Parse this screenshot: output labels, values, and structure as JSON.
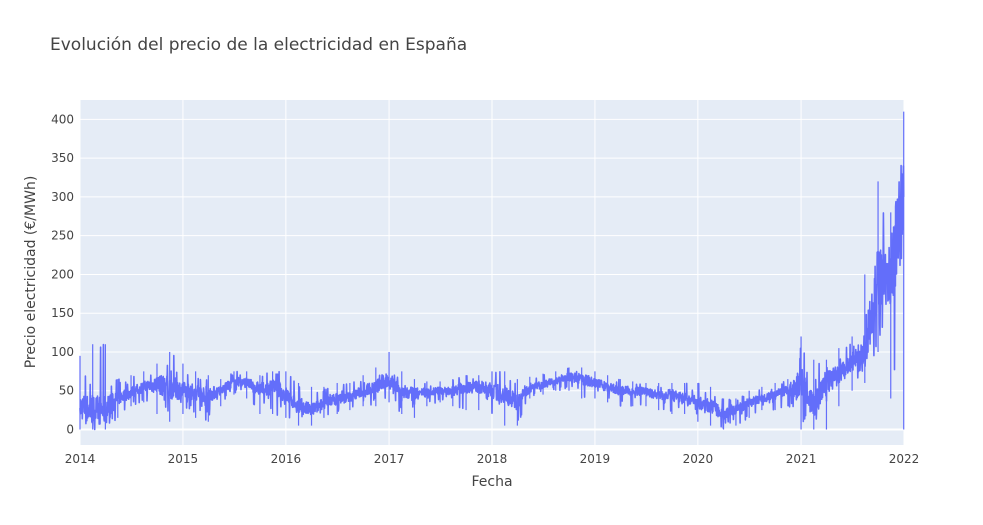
{
  "chart_data": {
    "type": "line",
    "title": "Evolución del precio de la electricidad en España",
    "xlabel": "Fecha",
    "ylabel": "Precio electricidad (€/MWh)",
    "xlim": [
      "2014-01-01",
      "2022-01-01"
    ],
    "ylim": [
      -20,
      425
    ],
    "x_ticks": [
      "2014",
      "2015",
      "2016",
      "2017",
      "2018",
      "2019",
      "2020",
      "2021",
      "2022"
    ],
    "y_ticks": [
      "0",
      "50",
      "100",
      "150",
      "200",
      "250",
      "300",
      "350",
      "400"
    ],
    "grid": true,
    "legend": "none",
    "series": [
      {
        "color": "#636efa",
        "x": [
          "2014-01-01",
          "2014-02-15",
          "2014-04-01",
          "2014-05-15",
          "2014-07-01",
          "2014-08-15",
          "2014-10-01",
          "2014-11-15",
          "2015-01-01",
          "2015-02-15",
          "2015-04-01",
          "2015-05-15",
          "2015-07-01",
          "2015-08-15",
          "2015-10-01",
          "2015-11-15",
          "2016-01-01",
          "2016-02-15",
          "2016-04-01",
          "2016-05-15",
          "2016-07-01",
          "2016-08-15",
          "2016-10-01",
          "2016-11-15",
          "2017-01-01",
          "2017-02-15",
          "2017-04-01",
          "2017-05-15",
          "2017-07-01",
          "2017-08-15",
          "2017-10-01",
          "2017-11-15",
          "2018-01-01",
          "2018-02-15",
          "2018-04-01",
          "2018-05-15",
          "2018-07-01",
          "2018-08-15",
          "2018-10-01",
          "2018-11-15",
          "2019-01-01",
          "2019-02-15",
          "2019-04-01",
          "2019-05-15",
          "2019-07-01",
          "2019-08-15",
          "2019-10-01",
          "2019-11-15",
          "2020-01-01",
          "2020-02-15",
          "2020-04-01",
          "2020-05-15",
          "2020-07-01",
          "2020-08-15",
          "2020-10-01",
          "2020-11-15",
          "2021-01-01",
          "2021-02-15",
          "2021-04-01",
          "2021-05-15",
          "2021-07-01",
          "2021-08-15",
          "2021-10-01",
          "2021-11-15",
          "2021-12-31"
        ],
        "values": [
          30,
          25,
          25,
          40,
          48,
          55,
          58,
          55,
          50,
          48,
          45,
          50,
          62,
          60,
          52,
          55,
          45,
          30,
          25,
          35,
          40,
          42,
          50,
          55,
          65,
          48,
          45,
          48,
          50,
          50,
          55,
          55,
          50,
          45,
          35,
          55,
          58,
          62,
          68,
          65,
          60,
          55,
          50,
          50,
          48,
          45,
          45,
          40,
          35,
          30,
          20,
          25,
          35,
          40,
          45,
          50,
          60,
          30,
          60,
          70,
          85,
          100,
          200,
          200,
          300
        ],
        "min": [
          0,
          0,
          0,
          15,
          30,
          35,
          20,
          10,
          20,
          15,
          10,
          30,
          45,
          40,
          20,
          20,
          15,
          5,
          5,
          15,
          20,
          25,
          30,
          30,
          35,
          20,
          15,
          30,
          35,
          30,
          25,
          25,
          20,
          5,
          5,
          40,
          45,
          50,
          50,
          40,
          40,
          35,
          30,
          30,
          30,
          25,
          20,
          20,
          10,
          5,
          0,
          5,
          15,
          25,
          25,
          30,
          0,
          0,
          0,
          30,
          50,
          60,
          100,
          40,
          0
        ],
        "max": [
          95,
          110,
          110,
          65,
          70,
          75,
          85,
          100,
          85,
          75,
          70,
          65,
          75,
          75,
          70,
          75,
          75,
          60,
          55,
          55,
          60,
          60,
          70,
          80,
          100,
          75,
          65,
          62,
          62,
          65,
          70,
          70,
          75,
          75,
          65,
          68,
          72,
          75,
          80,
          80,
          75,
          70,
          65,
          62,
          60,
          60,
          60,
          60,
          60,
          55,
          40,
          40,
          50,
          55,
          60,
          65,
          120,
          90,
          90,
          105,
          120,
          200,
          320,
          280,
          410
        ]
      }
    ]
  }
}
